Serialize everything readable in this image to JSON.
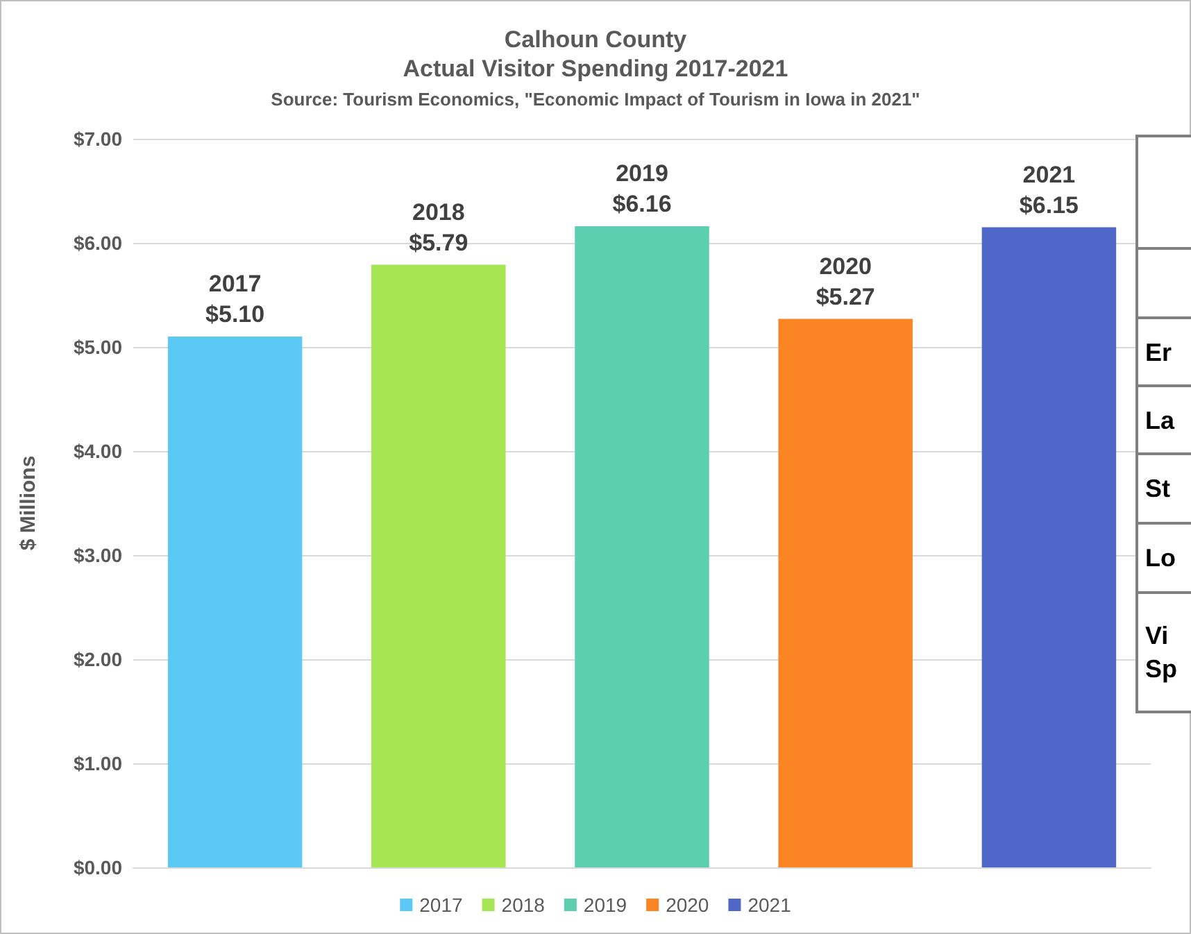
{
  "chart_data": {
    "type": "bar",
    "title": "Calhoun County",
    "subtitle": "Actual Visitor Spending 2017-2021",
    "ylabel": "$ Millions",
    "annotations": [
      "Source: Tourism Economics, \"Economic Impact of Tourism in Iowa in 2021\"",
      "Er",
      "La",
      "St",
      "Lo",
      "Vi\nSp"
    ],
    "categories": [
      null,
      null,
      null,
      null,
      null
    ],
    "series": [
      {
        "name": "2017",
        "color": "#5bc9f3",
        "values": [
          5.1,
          null,
          null,
          null,
          null
        ],
        "value_labels": [
          "2017\n$5.10",
          null,
          null,
          null,
          null
        ]
      },
      {
        "name": "2018",
        "color": "#a6e652",
        "values": [
          null,
          5.79,
          null,
          null,
          null
        ],
        "value_labels": [
          null,
          "2018\n$5.79",
          null,
          null,
          null
        ]
      },
      {
        "name": "2019",
        "color": "#5ccfb1",
        "values": [
          null,
          null,
          6.16,
          null,
          null
        ],
        "value_labels": [
          null,
          null,
          "2019\n$6.16",
          null,
          null
        ]
      },
      {
        "name": "2020",
        "color": "#fb8423",
        "values": [
          null,
          null,
          null,
          5.27,
          null
        ],
        "value_labels": [
          null,
          null,
          null,
          "2020\n$5.27",
          null
        ]
      },
      {
        "name": "2021",
        "color": "#4f67c8",
        "values": [
          null,
          null,
          null,
          null,
          6.15
        ],
        "value_labels": [
          null,
          null,
          null,
          null,
          "2021\n$6.15"
        ]
      }
    ],
    "ylim": [
      0,
      7
    ],
    "yticks": [
      {
        "value": 0,
        "label": "$0.00"
      },
      {
        "value": 1,
        "label": "$1.00"
      },
      {
        "value": 2,
        "label": "$2.00"
      },
      {
        "value": 3,
        "label": "$3.00"
      },
      {
        "value": 4,
        "label": "$4.00"
      },
      {
        "value": 5,
        "label": "$5.00"
      },
      {
        "value": 6,
        "label": "$6.00"
      },
      {
        "value": 7,
        "label": "$7.00"
      }
    ],
    "grid": "y",
    "legend": "bottom"
  }
}
